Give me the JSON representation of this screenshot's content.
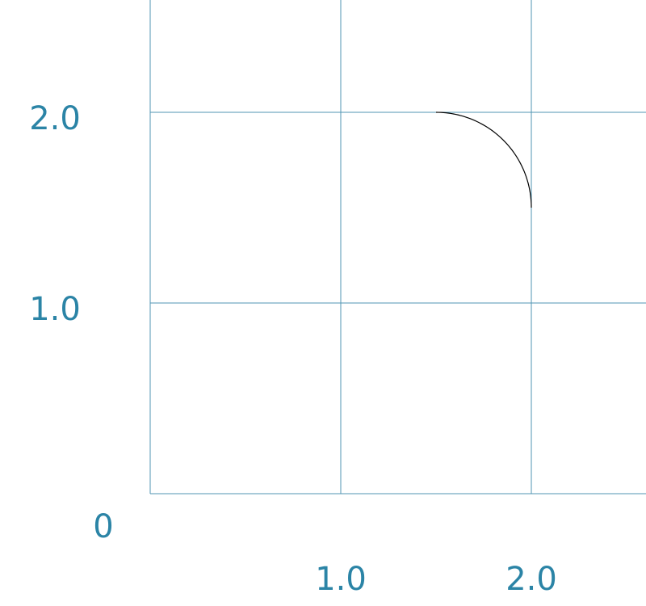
{
  "chart_data": {
    "type": "line",
    "title": "",
    "xlabel": "",
    "ylabel": "",
    "xlim": [
      0,
      2.6
    ],
    "ylim": [
      0,
      2.6
    ],
    "grid": true,
    "origin_label": "0",
    "x_ticks": [
      {
        "value": 1.0,
        "label": "1.0"
      },
      {
        "value": 2.0,
        "label": "2.0"
      }
    ],
    "y_ticks": [
      {
        "value": 1.0,
        "label": "1.0"
      },
      {
        "value": 2.0,
        "label": "2.0"
      }
    ],
    "series": [
      {
        "type": "arc",
        "center": [
          1.5,
          1.5
        ],
        "radius": 0.5,
        "angle_start_deg": 0,
        "angle_end_deg": 90,
        "color": "#000000"
      }
    ],
    "colors": {
      "grid": "#5196b3",
      "tick_labels": "#2b84a6",
      "curve": "#000000"
    }
  }
}
